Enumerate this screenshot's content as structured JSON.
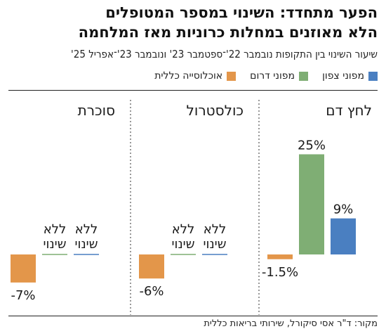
{
  "title": {
    "line1": "הפער מתחדד: השינוי במספר המטופלים",
    "line2": "הלא מאוזנים במחלות כרוניות מאז המלחמה"
  },
  "subtitle": "שיעור השינוי בין התקופות נובמבר 22'־ספטמבר 23' ונובמבר 23'־אפריל 25'",
  "source": "מקור: ד\"ר אסי סיקורל, שירותי בריאות כללית",
  "colors": {
    "north": "#4a7fc1",
    "south": "#7fae74",
    "general": "#e3964a",
    "divider": "#555555",
    "text": "#1a1a1a"
  },
  "chart_data": {
    "type": "bar",
    "categories": [
      "לחץ דם",
      "כולסטרול",
      "סוכרת"
    ],
    "series": [
      {
        "name": "מפוני צפון",
        "values": [
          9,
          null,
          null
        ],
        "labels": [
          "9%",
          "ללא שינוי",
          "ללא שינוי"
        ]
      },
      {
        "name": "מפוני דרום",
        "values": [
          25,
          null,
          null
        ],
        "labels": [
          "25%",
          "ללא שינוי",
          "ללא שינוי"
        ]
      },
      {
        "name": "אוכלוסייה כללית",
        "values": [
          -1.5,
          -6,
          -7
        ],
        "labels": [
          "-1.5%",
          "-6%",
          "-7%"
        ]
      }
    ],
    "legend_position": "top-right",
    "grid": false
  }
}
